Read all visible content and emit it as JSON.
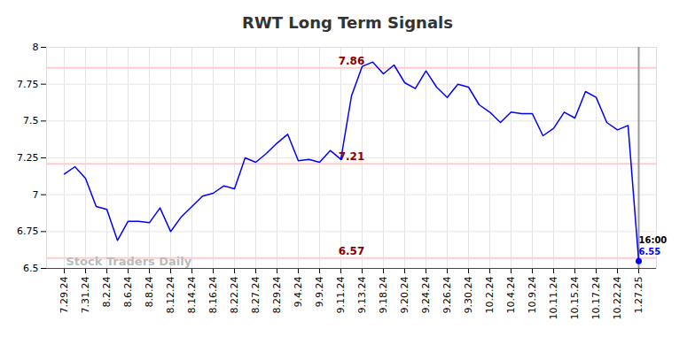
{
  "chart_data": {
    "type": "line",
    "title": "RWT Long Term Signals",
    "categories": [
      "7.29.24",
      null,
      "7.31.24",
      null,
      "8.2.24",
      null,
      "8.6.24",
      null,
      "8.8.24",
      null,
      "8.12.24",
      null,
      "8.14.24",
      null,
      "8.16.24",
      null,
      "8.22.24",
      null,
      "8.27.24",
      null,
      "8.29.24",
      null,
      "9.4.24",
      null,
      "9.9.24",
      null,
      "9.11.24",
      null,
      "9.13.24",
      null,
      "9.18.24",
      null,
      "9.20.24",
      null,
      "9.24.24",
      null,
      "9.26.24",
      null,
      "9.30.24",
      null,
      "10.2.24",
      null,
      "10.4.24",
      null,
      "10.9.24",
      null,
      "10.11.24",
      null,
      "10.15.24",
      null,
      "10.17.24",
      null,
      "10.22.24",
      null,
      "1.27.25"
    ],
    "values": [
      7.14,
      7.19,
      7.11,
      6.92,
      6.9,
      6.69,
      6.82,
      6.82,
      6.81,
      6.91,
      6.75,
      6.85,
      6.92,
      6.99,
      7.01,
      7.06,
      7.04,
      7.25,
      7.22,
      7.28,
      7.35,
      7.41,
      7.23,
      7.24,
      7.22,
      7.3,
      7.24,
      7.67,
      7.87,
      7.9,
      7.82,
      7.88,
      7.76,
      7.72,
      7.84,
      7.73,
      7.66,
      7.75,
      7.73,
      7.61,
      7.56,
      7.49,
      7.56,
      7.55,
      7.55,
      7.4,
      7.45,
      7.56,
      7.52,
      7.7,
      7.66,
      7.49,
      7.44,
      7.47,
      6.55
    ],
    "color": "#0000ff",
    "ylim": [
      6.5,
      8
    ],
    "yticks": [
      6.5,
      6.75,
      7,
      7.25,
      7.5,
      7.75,
      8
    ],
    "grid": true,
    "signal_levels": [
      7.86,
      7.21,
      6.57
    ],
    "last_point_label": "16:00",
    "watermark": "Stock Traders Daily"
  }
}
